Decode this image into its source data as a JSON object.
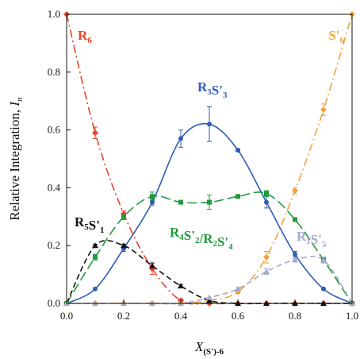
{
  "chart_data": {
    "type": "scatter",
    "title": "",
    "xlabel": "X",
    "xlabel_sub": "(S')-6",
    "ylabel": "Relative Integration, ",
    "ylabel_italic": "I",
    "ylabel_sub": "n",
    "xlim": [
      0.0,
      1.0
    ],
    "ylim": [
      0.0,
      1.0
    ],
    "x_ticks": [
      "0.0",
      "0.2",
      "0.4",
      "0.6",
      "0.8",
      "1.0"
    ],
    "y_ticks": [
      "0.0",
      "0.2",
      "0.4",
      "0.6",
      "0.8",
      "1.0"
    ],
    "grid": false,
    "legend": "inline-labels",
    "series": [
      {
        "name": "R6",
        "label_main": "R",
        "label_sub": "6",
        "color": "#e8432a",
        "marker": "diamond",
        "line_style": "dash-dot",
        "x": [
          0.0,
          0.1,
          0.2,
          0.3,
          0.4,
          0.5,
          0.6,
          0.7,
          0.8,
          0.9,
          1.0
        ],
        "values": [
          1.0,
          0.59,
          0.31,
          0.12,
          0.01,
          0.0,
          0.0,
          0.0,
          0.0,
          0.0,
          0.0
        ],
        "errors": [
          0.0,
          0.02,
          0.01,
          0.02,
          0.005,
          0.0,
          0.0,
          0.0,
          0.0,
          0.0,
          0.0
        ]
      },
      {
        "name": "S'6",
        "label_main": "S'",
        "label_sub": "6",
        "color": "#f2a33a",
        "marker": "diamond",
        "line_style": "dash-dot",
        "x": [
          0.0,
          0.1,
          0.2,
          0.3,
          0.4,
          0.5,
          0.6,
          0.7,
          0.8,
          0.9,
          1.0
        ],
        "values": [
          0.0,
          0.0,
          0.0,
          0.0,
          0.0,
          0.01,
          0.04,
          0.16,
          0.39,
          0.67,
          1.0
        ],
        "errors": [
          0.0,
          0.0,
          0.0,
          0.0,
          0.0,
          0.0,
          0.005,
          0.02,
          0.01,
          0.02,
          0.0
        ]
      },
      {
        "name": "R3S'3",
        "label_main": "R",
        "label_sub": "3",
        "label_main2": "S'",
        "label_sub2": "3",
        "color": "#2f5bb5",
        "marker": "circle",
        "line_style": "solid",
        "x": [
          0.0,
          0.1,
          0.2,
          0.3,
          0.4,
          0.5,
          0.6,
          0.7,
          0.8,
          0.9,
          1.0
        ],
        "values": [
          0.0,
          0.05,
          0.19,
          0.35,
          0.57,
          0.62,
          0.53,
          0.35,
          0.17,
          0.05,
          0.0
        ],
        "errors": [
          0.0,
          0.0,
          0.01,
          0.01,
          0.03,
          0.06,
          0.005,
          0.02,
          0.01,
          0.0,
          0.0
        ]
      },
      {
        "name": "R4S'2/R2S'4",
        "label_main": "R",
        "label_sub": "4",
        "label_main2": "S'",
        "label_sub2": "2",
        "label_main3": "/R",
        "label_sub3": "2",
        "label_main4": "S'",
        "label_sub4": "4",
        "color": "#1f9a3c",
        "marker": "square",
        "line_style": "long-dash",
        "x": [
          0.0,
          0.1,
          0.2,
          0.3,
          0.4,
          0.5,
          0.6,
          0.7,
          0.8,
          0.9,
          1.0
        ],
        "values": [
          0.0,
          0.16,
          0.3,
          0.37,
          0.35,
          0.35,
          0.37,
          0.38,
          0.29,
          0.15,
          0.0
        ],
        "errors": [
          0.0,
          0.01,
          0.01,
          0.015,
          0.005,
          0.025,
          0.0,
          0.01,
          0.0,
          0.01,
          0.0
        ]
      },
      {
        "name": "R5S'1",
        "label_main": "R",
        "label_sub": "5",
        "label_main2": "S'",
        "label_sub2": "1",
        "color": "#111111",
        "marker": "triangle",
        "line_style": "dash",
        "x": [
          0.0,
          0.1,
          0.2,
          0.3,
          0.4,
          0.5,
          0.6,
          0.7,
          0.8,
          0.9,
          1.0
        ],
        "values": [
          0.0,
          0.2,
          0.2,
          0.13,
          0.06,
          0.01,
          0.0,
          0.0,
          0.0,
          0.0,
          0.0
        ],
        "errors": [
          0.0,
          0.005,
          0.005,
          0.01,
          0.005,
          0.0,
          0.0,
          0.0,
          0.0,
          0.0,
          0.0
        ]
      },
      {
        "name": "R1S'5",
        "label_main": "R",
        "label_sub": "1",
        "label_main2": "S'",
        "label_sub2": "5",
        "color": "#a4a9cf",
        "marker": "triangle",
        "line_style": "dash",
        "x": [
          0.0,
          0.1,
          0.2,
          0.3,
          0.4,
          0.5,
          0.6,
          0.7,
          0.8,
          0.9,
          1.0
        ],
        "values": [
          0.0,
          0.0,
          0.0,
          0.0,
          0.0,
          0.02,
          0.05,
          0.11,
          0.15,
          0.15,
          0.0
        ],
        "errors": [
          0.0,
          0.0,
          0.0,
          0.0,
          0.0,
          0.0,
          0.005,
          0.01,
          0.005,
          0.01,
          0.0
        ]
      }
    ]
  }
}
